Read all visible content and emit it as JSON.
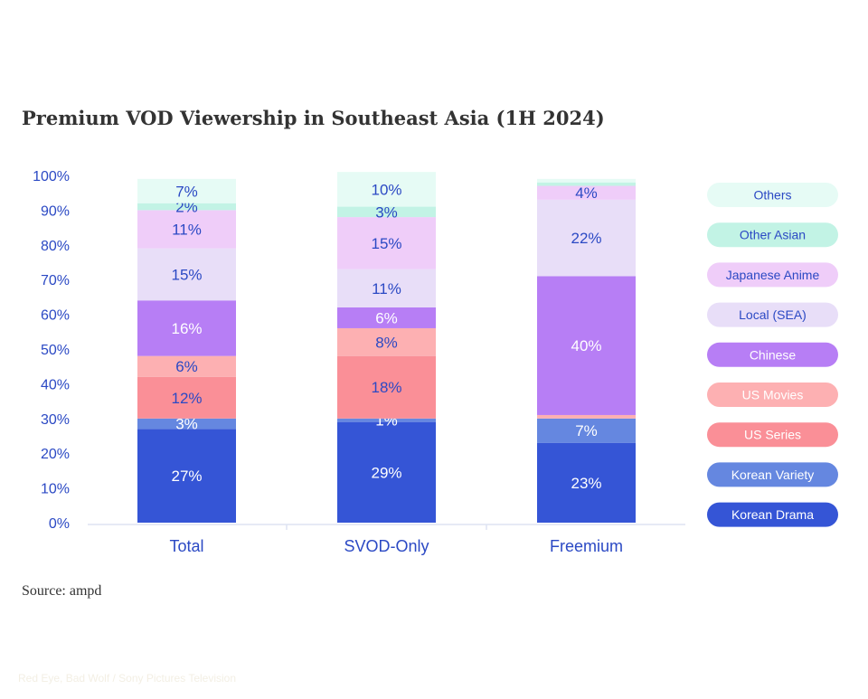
{
  "chart_data": {
    "type": "bar",
    "stacked": true,
    "title": "Premium VOD Viewership in Southeast Asia (1H 2024)",
    "xlabel": "",
    "ylabel": "",
    "ylim": [
      0,
      100
    ],
    "yticks": [
      "0%",
      "10%",
      "20%",
      "30%",
      "40%",
      "50%",
      "60%",
      "70%",
      "80%",
      "90%",
      "100%"
    ],
    "categories": [
      "Total",
      "SVOD-Only",
      "Freemium"
    ],
    "legend_position": "right",
    "series": [
      {
        "name": "Korean Drama",
        "color": "#3555d6",
        "label_color": "#ffffff",
        "values": [
          27,
          29,
          23
        ],
        "labels": [
          "27%",
          "29%",
          "23%"
        ]
      },
      {
        "name": "Korean Variety",
        "color": "#6587e0",
        "label_color": "#ffffff",
        "values": [
          3,
          1,
          7
        ],
        "labels": [
          "3%",
          "1%",
          "7%"
        ]
      },
      {
        "name": "US Series",
        "color": "#fa8f97",
        "label_color": "#2b49c4",
        "values": [
          12,
          18,
          0
        ],
        "labels": [
          "12%",
          "18%",
          ""
        ]
      },
      {
        "name": "US Movies",
        "color": "#fdb0b2",
        "label_color": "#2b49c4",
        "values": [
          6,
          8,
          1
        ],
        "labels": [
          "6%",
          "8%",
          ""
        ]
      },
      {
        "name": "Chinese",
        "color": "#b77ef5",
        "label_color": "#ffffff",
        "values": [
          16,
          6,
          40
        ],
        "labels": [
          "16%",
          "6%",
          "40%"
        ]
      },
      {
        "name": "Local (SEA)",
        "color": "#e8def8",
        "label_color": "#2b49c4",
        "values": [
          15,
          11,
          22
        ],
        "labels": [
          "15%",
          "11%",
          "22%"
        ]
      },
      {
        "name": "Japanese Anime",
        "color": "#efcdf9",
        "label_color": "#2b49c4",
        "values": [
          11,
          15,
          4
        ],
        "labels": [
          "11%",
          "15%",
          "4%"
        ]
      },
      {
        "name": "Other Asian",
        "color": "#c2f3e5",
        "label_color": "#2b49c4",
        "values": [
          2,
          3,
          1
        ],
        "labels": [
          "2%",
          "3%",
          ""
        ]
      },
      {
        "name": "Others",
        "color": "#e6fbf5",
        "label_color": "#2b49c4",
        "values": [
          7,
          10,
          1
        ],
        "labels": [
          "7%",
          "10%",
          ""
        ]
      }
    ],
    "legend_text_colors": {
      "Korean Drama": "#ffffff",
      "Korean Variety": "#ffffff",
      "US Series": "#ffffff",
      "US Movies": "#ffffff",
      "Chinese": "#ffffff",
      "Local (SEA)": "#2b49c4",
      "Japanese Anime": "#2b49c4",
      "Other Asian": "#2b49c4",
      "Others": "#2b49c4"
    },
    "axis_color": "#2b49c4",
    "source": "Source: ampd"
  },
  "caption": "Red Eye, Bad Wolf / Sony Pictures Television"
}
